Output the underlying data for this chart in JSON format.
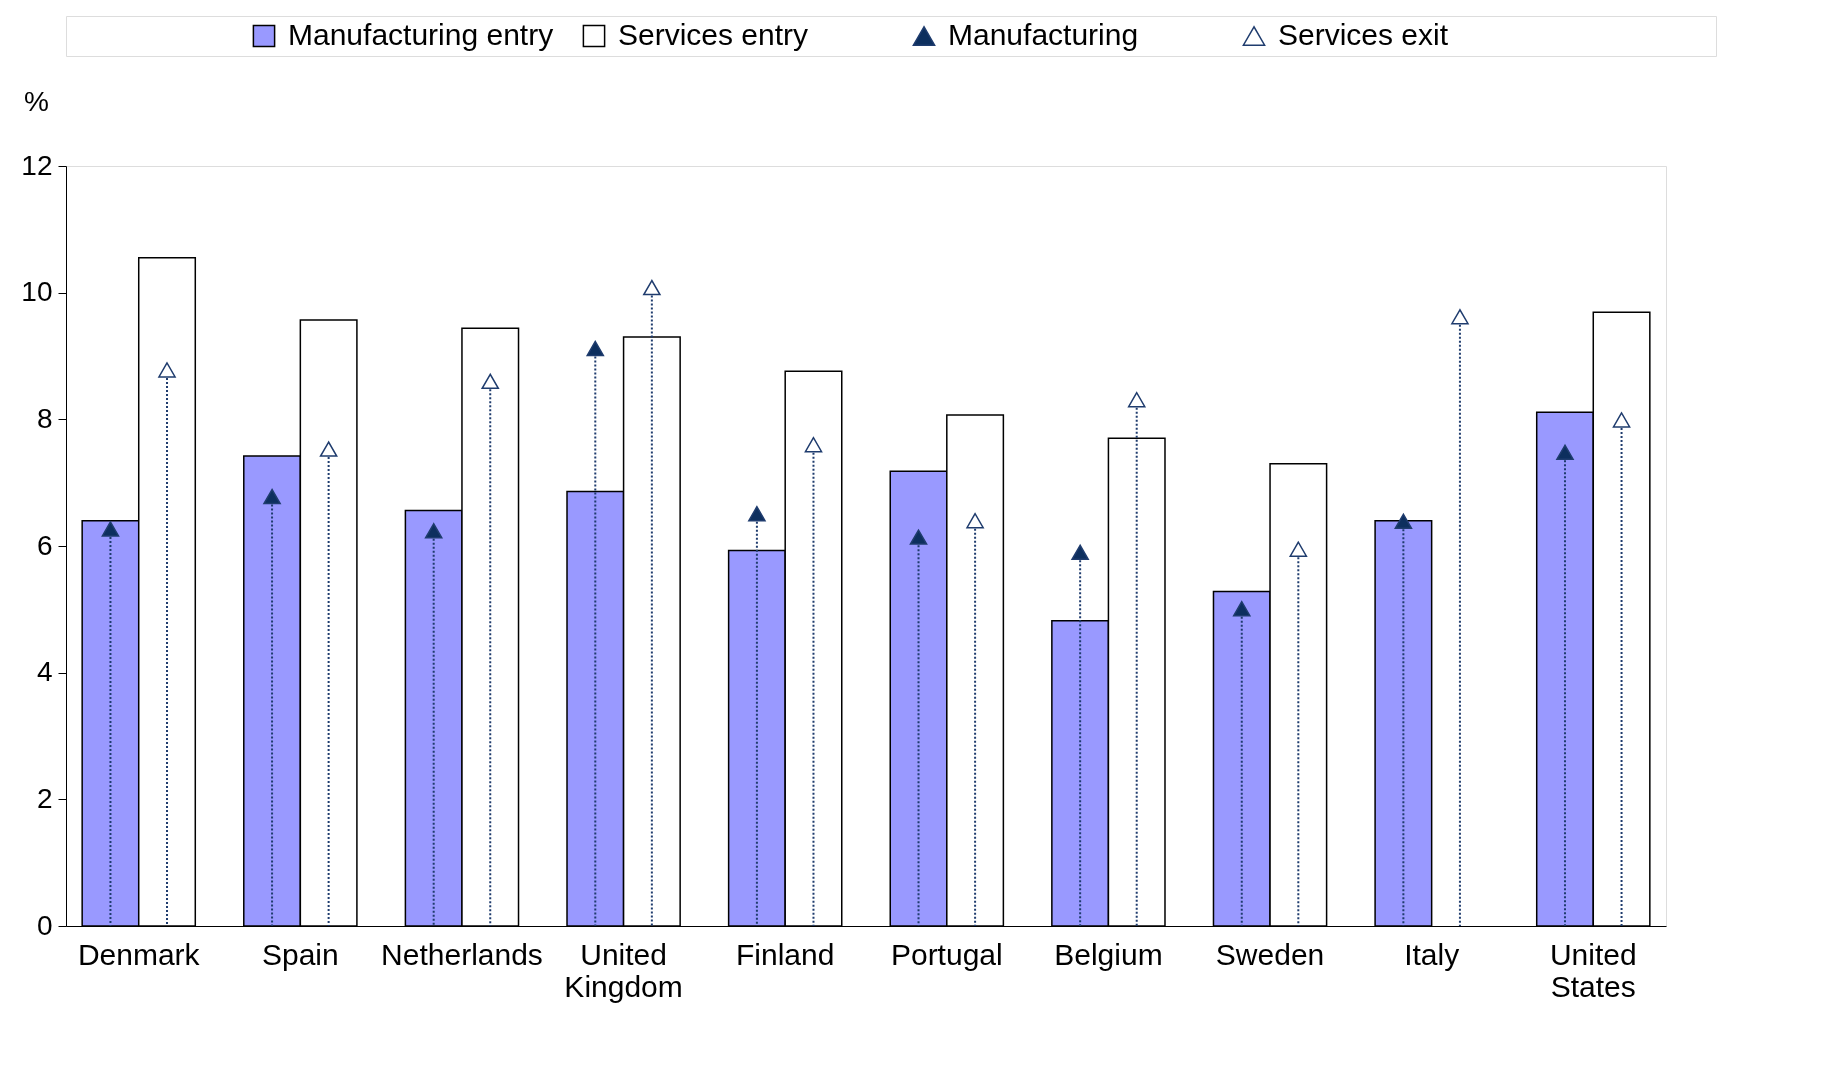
{
  "chart_data": {
    "type": "bar",
    "ylabel": "%",
    "categories": [
      "Denmark",
      "Spain",
      "Netherlands",
      "United Kingdom",
      "Finland",
      "Portugal",
      "Belgium",
      "Sweden",
      "Italy",
      "United States"
    ],
    "series": [
      {
        "name": "Manufacturing entry",
        "color": "#9999ff",
        "values": [
          6.4,
          7.42,
          6.56,
          6.86,
          5.93,
          7.18,
          4.82,
          5.28,
          6.4,
          8.11
        ]
      },
      {
        "name": "Services entry",
        "color": "#ffffff",
        "values": [
          10.55,
          9.57,
          9.44,
          9.3,
          8.76,
          8.07,
          7.7,
          7.3,
          null,
          9.69
        ]
      },
      {
        "name": "Manufacturing",
        "type": "scatter",
        "marker": "triangle",
        "color": "#0d2f5e",
        "values": [
          6.27,
          6.78,
          6.24,
          9.12,
          6.51,
          6.14,
          5.9,
          5.01,
          6.39,
          7.48
        ]
      },
      {
        "name": "Services exit",
        "type": "scatter",
        "marker": "triangle",
        "color": "#ffffff",
        "values": [
          8.78,
          7.53,
          8.6,
          10.08,
          7.6,
          6.4,
          8.31,
          5.95,
          9.62,
          7.99
        ]
      }
    ],
    "ylim": [
      0,
      12
    ],
    "yticks": [
      0,
      2,
      4,
      6,
      8,
      10,
      12
    ],
    "grid": false,
    "legend": "top"
  }
}
